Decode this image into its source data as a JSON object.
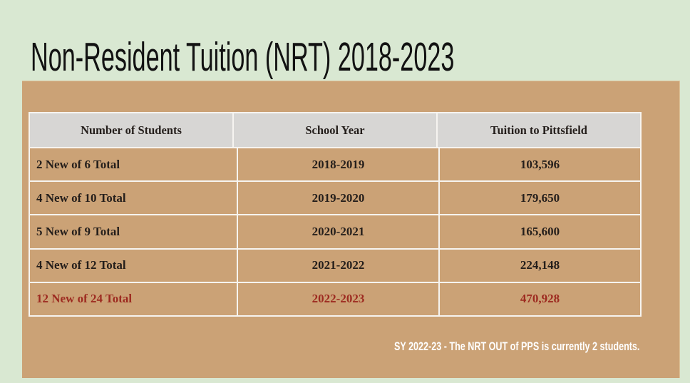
{
  "slide": {
    "title": "Non-Resident Tuition (NRT) 2018-2023",
    "footnote": "SY 2022-23 - The NRT OUT of PPS is currently 2 students."
  },
  "table": {
    "headers": [
      "Number of Students",
      "School Year",
      "Tuition to Pittsfield"
    ],
    "rows": [
      {
        "students": "2 New of 6 Total",
        "year": "2018-2019",
        "tuition": "103,596",
        "highlight": false
      },
      {
        "students": "4 New of 10 Total",
        "year": "2019-2020",
        "tuition": "179,650",
        "highlight": false
      },
      {
        "students": "5 New of 9 Total",
        "year": "2020-2021",
        "tuition": "165,600",
        "highlight": false
      },
      {
        "students": "4 New of 12 Total",
        "year": "2021-2022",
        "tuition": "224,148",
        "highlight": false
      },
      {
        "students": "12 New of 24 Total",
        "year": "2022-2023",
        "tuition": "470,928",
        "highlight": true
      }
    ]
  },
  "colors": {
    "background_green": "#d9e8d2",
    "panel_tan": "#cba276",
    "header_gray": "#d7d6d4",
    "table_border_white": "#f6f4f0",
    "text_dark": "#241e1b",
    "highlight_red": "#9d2a20",
    "footnote_white": "#ffffff",
    "title_black": "#121212"
  }
}
